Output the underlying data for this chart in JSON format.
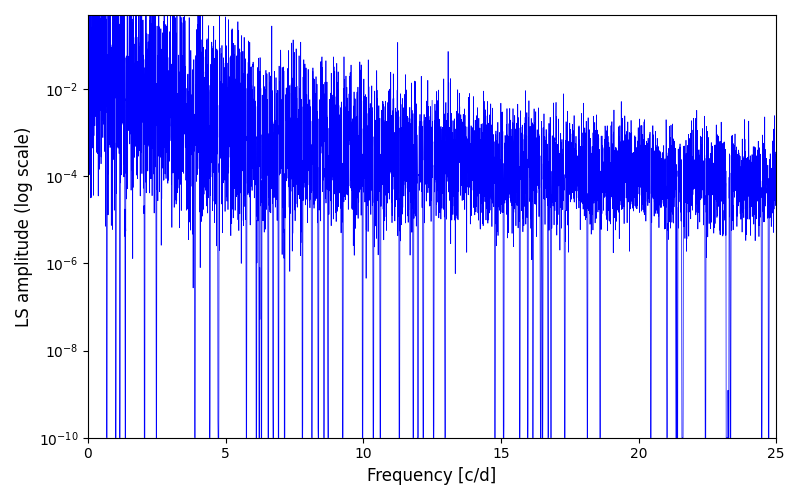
{
  "xlabel": "Frequency [c/d]",
  "ylabel": "LS amplitude (log scale)",
  "xlim": [
    0,
    25
  ],
  "ylim": [
    1e-10,
    0.5
  ],
  "line_color": "blue",
  "line_width": 0.5,
  "background_color": "#ffffff",
  "freq_min": 0.0,
  "freq_max": 25.0,
  "n_points": 8000,
  "seed": 12345,
  "figsize": [
    8.0,
    5.0
  ],
  "dpi": 100
}
